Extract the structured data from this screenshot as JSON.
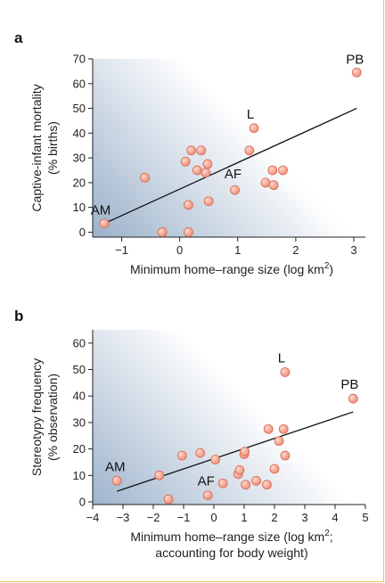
{
  "chart_data": [
    {
      "panel": "a",
      "type": "scatter",
      "xlabel": "Minimum home–range size (log km",
      "xlabel_sup": "2",
      "xlabel_end": ")",
      "ylabel_lines": [
        "Captive-infant mortality",
        "(% births)"
      ],
      "xlim": [
        -1.5,
        3.2
      ],
      "ylim": [
        -2,
        70
      ],
      "xticks": [
        -1,
        0,
        1,
        2,
        3
      ],
      "yticks": [
        0,
        10,
        20,
        30,
        40,
        50,
        60,
        70
      ],
      "points": [
        {
          "x": -1.3,
          "y": 3.5
        },
        {
          "x": -0.6,
          "y": 22
        },
        {
          "x": -0.3,
          "y": 0
        },
        {
          "x": 0.1,
          "y": 28.5
        },
        {
          "x": 0.15,
          "y": 11
        },
        {
          "x": 0.15,
          "y": 0
        },
        {
          "x": 0.2,
          "y": 33
        },
        {
          "x": 0.3,
          "y": 25
        },
        {
          "x": 0.37,
          "y": 33
        },
        {
          "x": 0.45,
          "y": 24
        },
        {
          "x": 0.48,
          "y": 27.5
        },
        {
          "x": 0.5,
          "y": 12.5
        },
        {
          "x": 0.95,
          "y": 17
        },
        {
          "x": 1.2,
          "y": 33
        },
        {
          "x": 1.28,
          "y": 42
        },
        {
          "x": 1.48,
          "y": 20
        },
        {
          "x": 1.6,
          "y": 25
        },
        {
          "x": 1.62,
          "y": 19
        },
        {
          "x": 1.78,
          "y": 25
        },
        {
          "x": 3.05,
          "y": 64.5
        }
      ],
      "trend": {
        "x": [
          -1.3,
          3.05
        ],
        "y": [
          3.5,
          50
        ]
      },
      "annotations": [
        {
          "text": "AM",
          "x": -1.3,
          "y": 3.5,
          "dx": -4,
          "dy": -10
        },
        {
          "text": "AF",
          "x": 0.95,
          "y": 17,
          "dx": -2,
          "dy": -13
        },
        {
          "text": "L",
          "x": 1.28,
          "y": 42,
          "dx": -4,
          "dy": -11
        },
        {
          "text": "PB",
          "x": 3.05,
          "y": 64.5,
          "dx": -2,
          "dy": -10
        }
      ]
    },
    {
      "panel": "b",
      "type": "scatter",
      "xlabel": "Minimum home–range size (log km",
      "xlabel_sup": "2",
      "xlabel_end": ";",
      "xlabel_line2": "accounting for body weight)",
      "ylabel_lines": [
        "Stereotypy frequency",
        "(% observation)"
      ],
      "xlim": [
        -4,
        5
      ],
      "ylim": [
        -1,
        65
      ],
      "xticks": [
        -4,
        -3,
        -2,
        -1,
        0,
        1,
        2,
        3,
        4,
        5
      ],
      "yticks": [
        0,
        10,
        20,
        30,
        40,
        50,
        60
      ],
      "points": [
        {
          "x": -3.2,
          "y": 8
        },
        {
          "x": -1.8,
          "y": 10
        },
        {
          "x": -1.5,
          "y": 1
        },
        {
          "x": -1.05,
          "y": 17.5
        },
        {
          "x": -0.45,
          "y": 18.5
        },
        {
          "x": -0.2,
          "y": 2.5
        },
        {
          "x": 0.05,
          "y": 16
        },
        {
          "x": 0.3,
          "y": 7
        },
        {
          "x": 0.8,
          "y": 10.5
        },
        {
          "x": 0.85,
          "y": 12
        },
        {
          "x": 1.0,
          "y": 18
        },
        {
          "x": 1.02,
          "y": 19
        },
        {
          "x": 1.05,
          "y": 6.5
        },
        {
          "x": 1.4,
          "y": 8
        },
        {
          "x": 1.75,
          "y": 6.5
        },
        {
          "x": 1.8,
          "y": 27.5
        },
        {
          "x": 2.0,
          "y": 12.5
        },
        {
          "x": 2.15,
          "y": 23
        },
        {
          "x": 2.3,
          "y": 27.5
        },
        {
          "x": 2.35,
          "y": 17.5
        },
        {
          "x": 2.35,
          "y": 49
        },
        {
          "x": 4.6,
          "y": 39
        }
      ],
      "trend": {
        "x": [
          -3.2,
          4.6
        ],
        "y": [
          4,
          34
        ]
      },
      "annotations": [
        {
          "text": "AM",
          "x": -3.2,
          "y": 8,
          "dx": -2,
          "dy": -11
        },
        {
          "text": "AF",
          "x": -0.2,
          "y": 2.5,
          "dx": -2,
          "dy": -11
        },
        {
          "text": "L",
          "x": 2.35,
          "y": 49,
          "dx": -4,
          "dy": -11
        },
        {
          "text": "PB",
          "x": 4.6,
          "y": 39,
          "dx": -4,
          "dy": -11
        }
      ]
    }
  ],
  "colors": {
    "point_fill": "#f19a86",
    "point_stroke": "#d86a55",
    "gradient_dark": "#9fb4cc",
    "gradient_light": "#ffffff",
    "frame": "#f2c05a"
  }
}
